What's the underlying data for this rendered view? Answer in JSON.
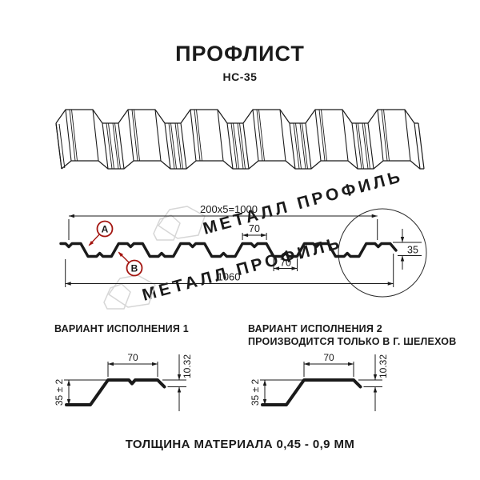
{
  "header": {
    "title": "ПРОФЛИСТ",
    "subtitle": "НС-35"
  },
  "cross_section": {
    "dim_total_top": "200x5=1000",
    "dim_crest_width": "70",
    "dim_valley_width": "70",
    "dim_total_bottom": "1060",
    "dim_height": "35",
    "callout_a": "А",
    "callout_b": "В"
  },
  "variant1": {
    "title": "ВАРИАНТ ИСПОЛНЕНИЯ 1",
    "dim_width": "70",
    "dim_lip": "10.32",
    "dim_height": "35 ± 2"
  },
  "variant2": {
    "title_line1": "ВАРИАНТ ИСПОЛНЕНИЯ 2",
    "title_line2": "ПРОИЗВОДИТСЯ ТОЛЬКО В Г. ШЕЛЕХОВ",
    "dim_width": "70",
    "dim_lip": "10.32",
    "dim_height": "35 ± 2"
  },
  "footer": {
    "thickness_note": "ТОЛЩИНА МАТЕРИАЛА 0,45 - 0,9 ММ"
  },
  "watermark": {
    "text": "МЕТАЛЛ ПРОФИЛЬ"
  },
  "colors": {
    "line": "#1a1a1a",
    "accent_red": "#a31510",
    "watermark": "#d6d6d6"
  }
}
